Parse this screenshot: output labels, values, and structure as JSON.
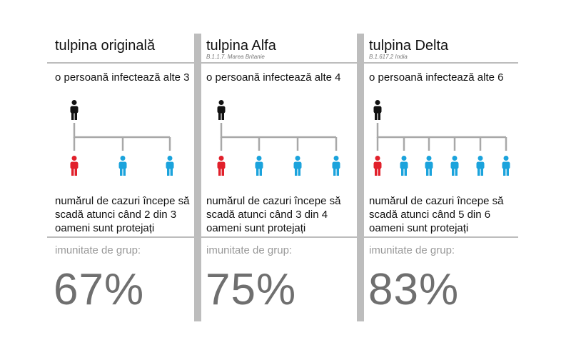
{
  "colors": {
    "infector": "#111111",
    "infected_red": "#e1202b",
    "infected_blue": "#1ba3dc",
    "line": "#a8a8a8",
    "separator": "#bdbdbd",
    "percent": "#6f6f6f"
  },
  "panels": [
    {
      "title": "tulpina originală",
      "subtitle": "",
      "infects": "o persoană infectează alte 3",
      "infected_count": 3,
      "description": [
        "numărul de cazuri începe să",
        "scadă atunci când 2 din 3",
        "oameni sunt protejați"
      ],
      "herd_label": "imunitate de grup:",
      "herd_value": "67%"
    },
    {
      "title": "tulpina Alfa",
      "subtitle": "B.1.1.7. Marea Britanie",
      "infects": "o persoană infectează alte 4",
      "infected_count": 4,
      "description": [
        "numărul de cazuri începe să",
        "scadă atunci când 3 din 4",
        "oameni sunt protejați"
      ],
      "herd_label": "imunitate de grup:",
      "herd_value": "75%"
    },
    {
      "title": "tulpina Delta",
      "subtitle": "B.1.617.2 India",
      "infects": "o persoană infectează alte 6",
      "infected_count": 6,
      "description": [
        "numărul de cazuri începe să",
        "scadă atunci când 5 din 6",
        "oameni sunt protejați"
      ],
      "herd_label": "imunitate de grup:",
      "herd_value": "83%"
    }
  ]
}
